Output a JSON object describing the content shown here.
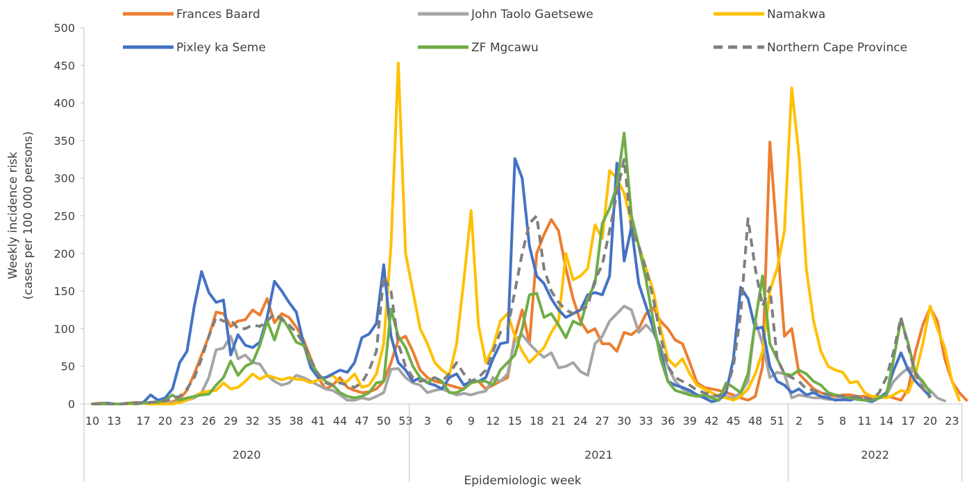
{
  "chart_data": {
    "type": "line",
    "xlabel": "Epidemiologic week",
    "ylabel_lines": [
      "Weekly incidence risk",
      "(cases per 100 000 persons)"
    ],
    "ylim": [
      0,
      500
    ],
    "y_ticks": [
      0,
      50,
      100,
      150,
      200,
      250,
      300,
      350,
      400,
      450,
      500
    ],
    "x_tick_labels": [
      "10",
      "13",
      "17",
      "20",
      "23",
      "26",
      "29",
      "32",
      "35",
      "38",
      "41",
      "44",
      "47",
      "50",
      "53",
      "3",
      "6",
      "9",
      "12",
      "15",
      "18",
      "21",
      "24",
      "27",
      "30",
      "33",
      "36",
      "39",
      "42",
      "45",
      "48",
      "51",
      "2",
      "5",
      "8",
      "11",
      "14",
      "17",
      "20",
      "23"
    ],
    "years": [
      {
        "label": "2020",
        "start_week": 10,
        "end_week": 53
      },
      {
        "label": "2021",
        "start_week": 1,
        "end_week": 52
      },
      {
        "label": "2022",
        "start_week": 1,
        "end_week": 24
      }
    ],
    "legend_placement": "top",
    "series": [
      {
        "name": "Frances Baard",
        "color": "#ED7D31",
        "dashed": false,
        "values": [
          0,
          1,
          1,
          0,
          0,
          1,
          2,
          1,
          0,
          2,
          2,
          3,
          7,
          18,
          40,
          65,
          90,
          122,
          120,
          103,
          110,
          112,
          125,
          118,
          140,
          108,
          120,
          115,
          102,
          85,
          60,
          35,
          20,
          25,
          35,
          22,
          18,
          15,
          16,
          20,
          30,
          55,
          85,
          90,
          70,
          45,
          35,
          30,
          28,
          25,
          22,
          20,
          30,
          30,
          20,
          25,
          30,
          35,
          90,
          125,
          80,
          200,
          225,
          245,
          230,
          180,
          140,
          110,
          95,
          100,
          80,
          80,
          70,
          95,
          92,
          100,
          120,
          128,
          110,
          100,
          85,
          80,
          55,
          28,
          22,
          20,
          18,
          15,
          12,
          8,
          5,
          10,
          50,
          348,
          220,
          90,
          100,
          40,
          30,
          20,
          15,
          12,
          10,
          12,
          12,
          10,
          10,
          8,
          8,
          10,
          8,
          5,
          20,
          70,
          105,
          128,
          110,
          60,
          30,
          15,
          5
        ]
      },
      {
        "name": "John Taolo Gaetsewe",
        "color": "#A5A5A5",
        "dashed": false,
        "values": [
          0,
          0,
          1,
          0,
          0,
          1,
          1,
          1,
          0,
          0,
          1,
          2,
          3,
          5,
          8,
          15,
          35,
          72,
          74,
          90,
          60,
          65,
          55,
          53,
          38,
          30,
          25,
          28,
          38,
          35,
          30,
          25,
          20,
          18,
          12,
          5,
          5,
          8,
          6,
          10,
          15,
          46,
          47,
          35,
          28,
          25,
          15,
          18,
          20,
          16,
          12,
          14,
          12,
          15,
          17,
          35,
          30,
          40,
          85,
          92,
          80,
          70,
          62,
          68,
          48,
          50,
          55,
          43,
          38,
          80,
          90,
          110,
          120,
          130,
          125,
          95,
          105,
          95,
          75,
          50,
          30,
          20,
          15,
          12,
          10,
          10,
          12,
          10,
          8,
          15,
          30,
          110,
          80,
          35,
          42,
          40,
          8,
          12,
          10,
          8,
          8,
          6,
          6,
          5,
          8,
          6,
          5,
          6,
          8,
          12,
          30,
          40,
          48,
          44,
          25,
          18,
          8,
          4
        ]
      },
      {
        "name": "Namakwa",
        "color": "#FFC000",
        "dashed": false,
        "values": [
          0,
          0,
          0,
          0,
          0,
          0,
          0,
          1,
          0,
          0,
          0,
          0,
          2,
          5,
          10,
          15,
          17,
          18,
          28,
          20,
          22,
          30,
          40,
          33,
          38,
          35,
          32,
          35,
          33,
          32,
          28,
          32,
          35,
          38,
          28,
          30,
          40,
          22,
          25,
          40,
          80,
          210,
          453,
          200,
          150,
          100,
          80,
          55,
          45,
          38,
          80,
          165,
          257,
          105,
          55,
          75,
          110,
          120,
          90,
          70,
          55,
          65,
          75,
          95,
          110,
          200,
          165,
          170,
          180,
          238,
          220,
          310,
          300,
          280,
          240,
          210,
          180,
          150,
          100,
          60,
          50,
          60,
          40,
          25,
          20,
          15,
          10,
          8,
          5,
          10,
          20,
          40,
          70,
          150,
          180,
          230,
          420,
          330,
          180,
          110,
          70,
          50,
          45,
          42,
          28,
          30,
          15,
          10,
          10,
          8,
          12,
          18,
          15,
          40,
          80,
          130,
          100,
          75,
          30,
          5
        ]
      },
      {
        "name": "Pixley ka Seme",
        "color": "#4472C4",
        "dashed": false,
        "values": [
          0,
          0,
          1,
          0,
          0,
          1,
          1,
          2,
          12,
          5,
          8,
          20,
          55,
          70,
          130,
          176,
          148,
          135,
          138,
          65,
          92,
          78,
          75,
          82,
          115,
          163,
          150,
          135,
          122,
          80,
          48,
          35,
          35,
          40,
          45,
          42,
          55,
          88,
          93,
          107,
          185,
          90,
          55,
          45,
          30,
          35,
          28,
          25,
          20,
          35,
          40,
          25,
          30,
          30,
          35,
          60,
          80,
          82,
          326,
          300,
          210,
          170,
          160,
          140,
          125,
          115,
          120,
          125,
          145,
          148,
          145,
          170,
          320,
          190,
          235,
          160,
          130,
          100,
          70,
          30,
          25,
          22,
          18,
          12,
          8,
          3,
          5,
          15,
          60,
          155,
          140,
          100,
          102,
          50,
          30,
          25,
          15,
          20,
          12,
          15,
          10,
          8,
          5,
          6,
          5,
          8,
          5,
          3,
          8,
          15,
          45,
          68,
          45,
          30,
          20,
          10
        ]
      },
      {
        "name": "ZF Mgcawu",
        "color": "#70AD47",
        "dashed": false,
        "values": [
          0,
          0,
          0,
          0,
          0,
          1,
          0,
          1,
          2,
          2,
          5,
          12,
          5,
          8,
          10,
          12,
          13,
          25,
          35,
          57,
          38,
          50,
          55,
          78,
          110,
          85,
          115,
          100,
          82,
          78,
          55,
          40,
          30,
          25,
          15,
          10,
          8,
          10,
          15,
          28,
          30,
          126,
          90,
          75,
          50,
          35,
          28,
          35,
          30,
          15,
          15,
          20,
          28,
          30,
          30,
          25,
          45,
          55,
          65,
          100,
          145,
          147,
          115,
          120,
          105,
          88,
          110,
          105,
          140,
          160,
          240,
          260,
          290,
          360,
          250,
          210,
          165,
          110,
          60,
          30,
          18,
          15,
          12,
          10,
          12,
          8,
          5,
          28,
          22,
          15,
          40,
          110,
          170,
          80,
          60,
          40,
          38,
          45,
          40,
          30,
          25,
          15,
          12,
          10,
          8,
          6,
          5,
          5,
          8,
          12,
          60,
          113,
          80,
          40,
          30,
          15
        ]
      },
      {
        "name": "Northern Cape Province",
        "color": "#7F7F7F",
        "dashed": true,
        "values": [
          0,
          0,
          0,
          0,
          0,
          1,
          1,
          1,
          2,
          3,
          4,
          8,
          10,
          20,
          35,
          60,
          90,
          115,
          110,
          112,
          100,
          100,
          105,
          103,
          110,
          120,
          112,
          105,
          95,
          80,
          58,
          40,
          28,
          25,
          28,
          25,
          22,
          28,
          45,
          70,
          170,
          150,
          80,
          50,
          35,
          30,
          32,
          35,
          30,
          40,
          55,
          40,
          30,
          35,
          45,
          70,
          95,
          100,
          150,
          200,
          240,
          250,
          180,
          150,
          135,
          125,
          120,
          125,
          130,
          165,
          185,
          230,
          280,
          325,
          230,
          210,
          180,
          140,
          90,
          50,
          35,
          30,
          25,
          18,
          15,
          12,
          10,
          18,
          50,
          120,
          246,
          180,
          130,
          155,
          60,
          40,
          35,
          30,
          20,
          18,
          15,
          12,
          10,
          10,
          8,
          10,
          8,
          6,
          15,
          35,
          70,
          115,
          75,
          40,
          20,
          8
        ]
      }
    ]
  }
}
